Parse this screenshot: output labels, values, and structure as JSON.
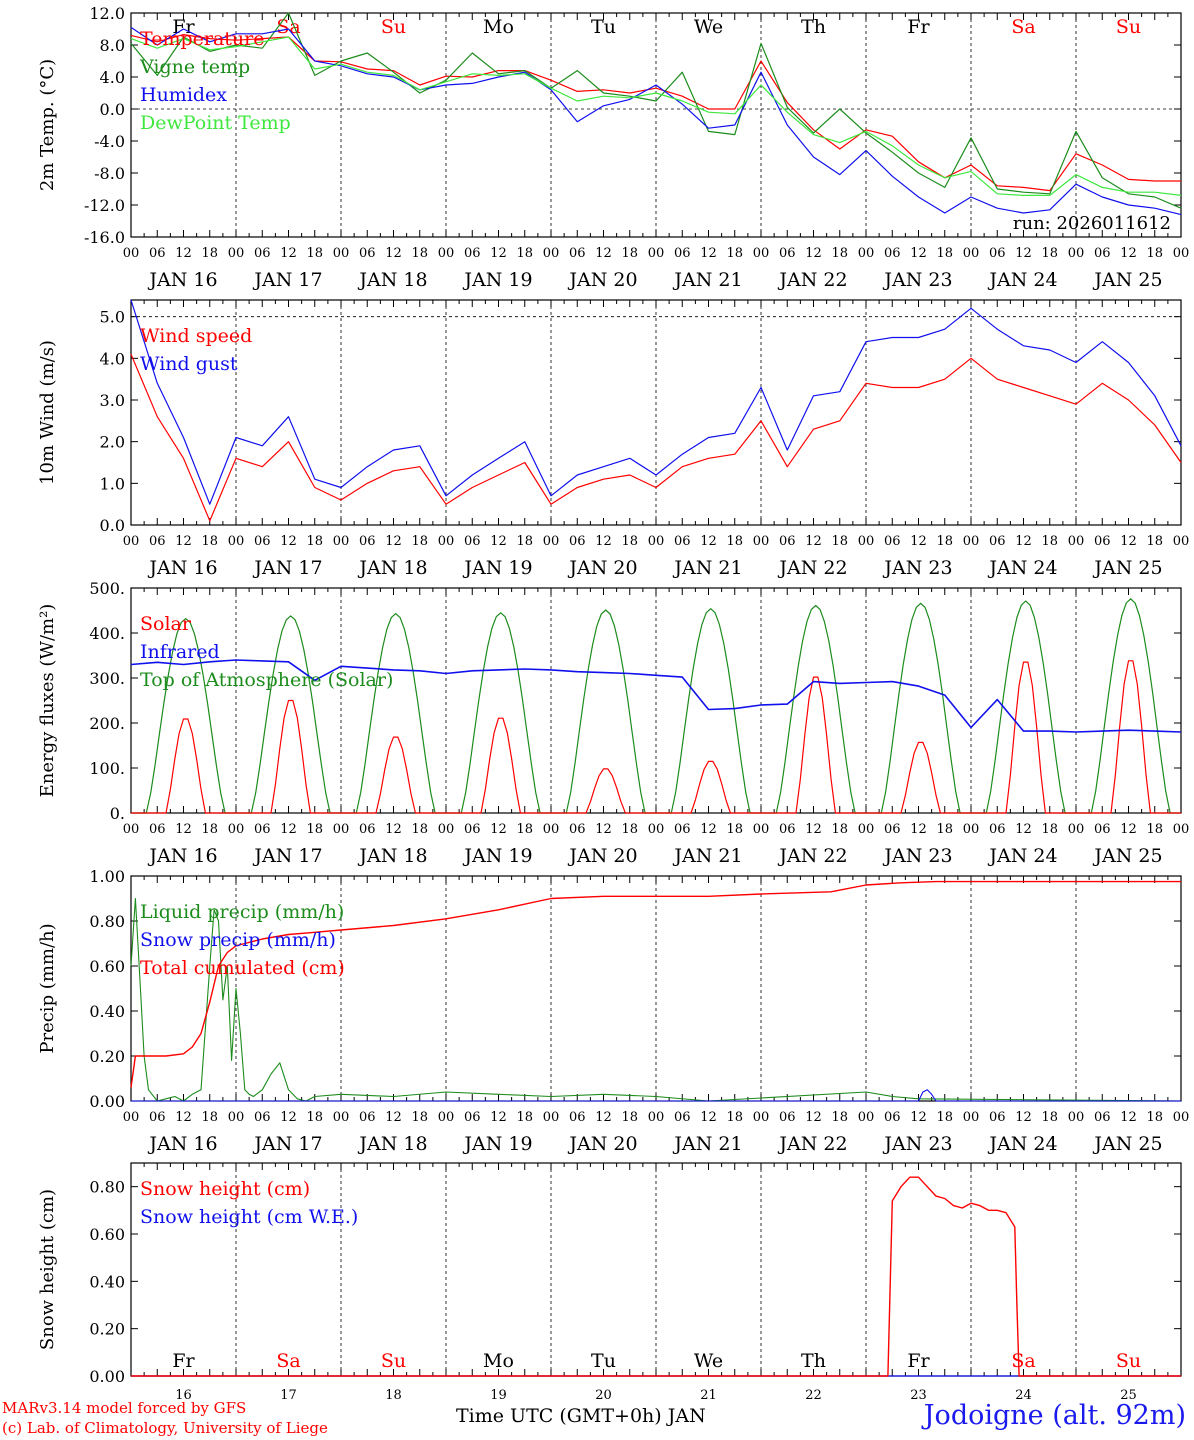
{
  "colors": {
    "red": "#ff0000",
    "green": "#1c8c1c",
    "blue": "#1010ee",
    "light_green": "#3ee83e",
    "axis": "#000000",
    "weekend": "#ff0000"
  },
  "x_axis": {
    "hour_labels": [
      "00",
      "06",
      "12",
      "18"
    ],
    "final_hour_label": "00",
    "date_labels": [
      "JAN 16",
      "JAN 17",
      "JAN 18",
      "JAN 19",
      "JAN 20",
      "JAN 21",
      "JAN 22",
      "JAN 23",
      "JAN 24",
      "JAN 25"
    ],
    "weekdays": [
      {
        "label": "Fr",
        "weekend": false
      },
      {
        "label": "Sa",
        "weekend": true
      },
      {
        "label": "Su",
        "weekend": true
      },
      {
        "label": "Mo",
        "weekend": false
      },
      {
        "label": "Tu",
        "weekend": false
      },
      {
        "label": "We",
        "weekend": false
      },
      {
        "label": "Th",
        "weekend": false
      },
      {
        "label": "Fr",
        "weekend": false
      },
      {
        "label": "Sa",
        "weekend": true
      },
      {
        "label": "Su",
        "weekend": true
      }
    ],
    "day_numbers": [
      "16",
      "17",
      "18",
      "19",
      "20",
      "21",
      "22",
      "23",
      "24",
      "25"
    ],
    "xlabel": "Time UTC (GMT+0h) JAN"
  },
  "footer": {
    "credit_line1": "MARv3.14 model forced by GFS",
    "credit_line2": "(c) Lab. of Climatology, University of Liege",
    "location": "Jodoigne (alt. 92m)"
  },
  "chart_data": [
    {
      "type": "line",
      "title": "2m temperature",
      "ylabel": "2m Temp. (°C)",
      "ylim": [
        -16,
        12
      ],
      "yticks": [
        "12.0",
        "8.0",
        "4.0",
        "0.0",
        "-4.0",
        "-8.0",
        "-12.0",
        "-16.0"
      ],
      "ytick_values": [
        12,
        8,
        4,
        0,
        -4,
        -8,
        -12,
        -16
      ],
      "ref_line": 0,
      "annotation": "run: 2026011612",
      "x_hours": [
        0,
        6,
        12,
        18,
        24,
        30,
        36,
        42,
        48,
        54,
        60,
        66,
        72,
        78,
        84,
        90,
        96,
        102,
        108,
        114,
        120,
        126,
        132,
        138,
        144,
        150,
        156,
        162,
        168,
        174,
        180,
        186,
        192,
        198,
        204,
        210,
        216,
        222,
        228,
        234,
        240
      ],
      "series": [
        {
          "name": "Temperature",
          "color": "red",
          "values": [
            9.2,
            8.4,
            9.3,
            8.8,
            8.6,
            8.8,
            9.0,
            6.0,
            5.9,
            5.0,
            4.8,
            3.0,
            4.1,
            4.0,
            4.8,
            4.8,
            3.6,
            2.2,
            2.4,
            2.0,
            2.6,
            1.6,
            0.0,
            0.0,
            6.0,
            0.8,
            -2.6,
            -5.0,
            -2.6,
            -3.4,
            -6.6,
            -8.6,
            -7.0,
            -9.6,
            -9.8,
            -10.2,
            -5.6,
            -7.0,
            -8.8,
            -9.0,
            -9.0
          ]
        },
        {
          "name": "Vigne temp",
          "color": "green",
          "values": [
            8.2,
            4.2,
            9.0,
            7.2,
            8.0,
            7.6,
            12.0,
            4.2,
            6.0,
            7.0,
            4.6,
            2.0,
            3.6,
            7.0,
            4.4,
            4.8,
            2.6,
            4.8,
            2.0,
            1.6,
            1.0,
            4.6,
            -2.8,
            -3.2,
            8.2,
            0.2,
            -3.0,
            0.0,
            -3.0,
            -5.4,
            -8.0,
            -9.8,
            -3.6,
            -10.0,
            -10.4,
            -10.6,
            -2.8,
            -8.6,
            -10.6,
            -11.0,
            -12.4
          ]
        },
        {
          "name": "Humidex",
          "color": "blue",
          "values": [
            10.2,
            8.0,
            10.0,
            8.4,
            9.4,
            9.4,
            10.0,
            6.0,
            5.4,
            4.4,
            4.0,
            2.4,
            3.0,
            3.2,
            4.0,
            4.6,
            2.4,
            -1.6,
            0.4,
            1.2,
            3.0,
            0.6,
            -2.4,
            -2.0,
            4.6,
            -2.0,
            -6.0,
            -8.2,
            -5.2,
            -8.4,
            -11.0,
            -13.0,
            -11.0,
            -12.4,
            -13.0,
            -12.6,
            -9.4,
            -11.0,
            -12.0,
            -12.4,
            -13.2
          ]
        },
        {
          "name": "DewPoint Temp",
          "color": "light_green",
          "values": [
            8.8,
            7.6,
            8.8,
            7.4,
            7.8,
            8.4,
            9.0,
            5.0,
            5.6,
            4.6,
            4.2,
            2.4,
            3.4,
            4.4,
            4.2,
            4.4,
            2.6,
            1.0,
            1.6,
            1.4,
            2.0,
            1.0,
            -0.4,
            -0.6,
            3.0,
            -0.4,
            -3.2,
            -4.2,
            -2.8,
            -4.6,
            -7.0,
            -8.6,
            -7.8,
            -10.6,
            -10.8,
            -10.8,
            -8.2,
            -9.8,
            -10.4,
            -10.4,
            -10.8
          ]
        }
      ]
    },
    {
      "type": "line",
      "title": "10m wind",
      "ylabel": "10m Wind (m/s)",
      "ylim": [
        0,
        5.4
      ],
      "yticks": [
        "5.0",
        "4.0",
        "3.0",
        "2.0",
        "1.0",
        "0.0"
      ],
      "ytick_values": [
        5,
        4,
        3,
        2,
        1,
        0
      ],
      "ref_line": 5,
      "x_hours": [
        0,
        6,
        12,
        18,
        24,
        30,
        36,
        42,
        48,
        54,
        60,
        66,
        72,
        78,
        84,
        90,
        96,
        102,
        108,
        114,
        120,
        126,
        132,
        138,
        144,
        150,
        156,
        162,
        168,
        174,
        180,
        186,
        192,
        198,
        204,
        210,
        216,
        222,
        228,
        234,
        240
      ],
      "series": [
        {
          "name": "Wind speed",
          "color": "red",
          "values": [
            4.1,
            2.6,
            1.6,
            0.1,
            1.6,
            1.4,
            2.0,
            0.9,
            0.6,
            1.0,
            1.3,
            1.4,
            0.5,
            0.9,
            1.2,
            1.5,
            0.5,
            0.9,
            1.1,
            1.2,
            0.9,
            1.4,
            1.6,
            1.7,
            2.5,
            1.4,
            2.3,
            2.5,
            3.4,
            3.3,
            3.3,
            3.5,
            4.0,
            3.5,
            3.3,
            3.1,
            2.9,
            3.4,
            3.0,
            2.4,
            1.5
          ]
        },
        {
          "name": "Wind gust",
          "color": "blue",
          "values": [
            5.4,
            3.4,
            2.1,
            0.5,
            2.1,
            1.9,
            2.6,
            1.1,
            0.9,
            1.4,
            1.8,
            1.9,
            0.7,
            1.2,
            1.6,
            2.0,
            0.7,
            1.2,
            1.4,
            1.6,
            1.2,
            1.7,
            2.1,
            2.2,
            3.3,
            1.8,
            3.1,
            3.2,
            4.4,
            4.5,
            4.5,
            4.7,
            5.2,
            4.7,
            4.3,
            4.2,
            3.9,
            4.4,
            3.9,
            3.1,
            1.9
          ]
        }
      ]
    },
    {
      "type": "line",
      "title": "Energy fluxes",
      "ylabel": "Energy fluxes (W/m²)",
      "ylim": [
        0,
        500
      ],
      "yticks": [
        "500.",
        "400.",
        "300.",
        "200.",
        "100.",
        "0."
      ],
      "ytick_values": [
        500,
        400,
        300,
        200,
        100,
        0
      ],
      "solar_peaks": [
        213,
        255,
        172,
        215,
        100,
        117,
        308,
        160,
        342,
        345
      ],
      "toa_peaks": [
        432,
        438,
        443,
        445,
        451,
        454,
        461,
        466,
        471,
        476
      ],
      "infrared": {
        "x_hours": [
          0,
          6,
          12,
          18,
          24,
          30,
          36,
          42,
          48,
          54,
          60,
          66,
          72,
          78,
          84,
          90,
          96,
          102,
          108,
          114,
          120,
          126,
          132,
          138,
          144,
          150,
          156,
          162,
          168,
          174,
          180,
          186,
          192,
          198,
          204,
          210,
          216,
          222,
          228,
          234,
          240
        ],
        "values": [
          330,
          335,
          330,
          336,
          340,
          338,
          336,
          295,
          326,
          322,
          318,
          316,
          310,
          316,
          318,
          320,
          318,
          314,
          312,
          310,
          306,
          302,
          230,
          232,
          240,
          242,
          292,
          288,
          290,
          292,
          282,
          262,
          190,
          252,
          182,
          182,
          180,
          182,
          184,
          182,
          180
        ]
      },
      "series": [
        {
          "name": "Solar",
          "color": "red"
        },
        {
          "name": "Infrared",
          "color": "blue"
        },
        {
          "name": "Top of Atmosphere (Solar)",
          "color": "green"
        }
      ]
    },
    {
      "type": "line",
      "title": "Precipitation",
      "ylabel": "Precip (mm/h)",
      "ylim": [
        0,
        1.0
      ],
      "yticks": [
        "1.00",
        "0.80",
        "0.60",
        "0.40",
        "0.20",
        "0.00"
      ],
      "ytick_values": [
        1.0,
        0.8,
        0.6,
        0.4,
        0.2,
        0.0
      ],
      "liquid": {
        "x_hours": [
          0,
          1,
          2,
          3,
          4,
          6,
          8,
          10,
          12,
          14,
          16,
          18,
          19,
          20,
          21,
          22,
          23,
          24,
          25,
          26,
          27,
          28,
          30,
          32,
          34,
          36,
          38,
          40,
          42,
          48,
          60,
          72,
          84,
          96,
          108,
          120,
          132,
          168,
          174,
          180,
          240
        ],
        "values": [
          0.6,
          0.9,
          0.55,
          0.2,
          0.05,
          0.0,
          0.01,
          0.02,
          0.0,
          0.03,
          0.05,
          0.6,
          0.85,
          0.8,
          0.45,
          0.6,
          0.18,
          0.5,
          0.3,
          0.05,
          0.03,
          0.02,
          0.05,
          0.12,
          0.17,
          0.05,
          0.01,
          0.0,
          0.02,
          0.03,
          0.02,
          0.04,
          0.03,
          0.02,
          0.03,
          0.02,
          0.0,
          0.04,
          0.02,
          0.01,
          0.0
        ]
      },
      "snow": {
        "x_hours": [
          0,
          180,
          181,
          182,
          183,
          184,
          240
        ],
        "values": [
          0,
          0,
          0.04,
          0.05,
          0.03,
          0,
          0
        ]
      },
      "cumulated": {
        "x_hours": [
          0,
          1,
          2,
          4,
          8,
          12,
          14,
          16,
          18,
          20,
          22,
          24,
          26,
          30,
          36,
          42,
          48,
          60,
          72,
          84,
          96,
          108,
          120,
          132,
          144,
          160,
          168,
          176,
          184,
          192,
          200,
          216,
          240
        ],
        "values": [
          0.06,
          0.2,
          0.2,
          0.2,
          0.2,
          0.21,
          0.24,
          0.3,
          0.44,
          0.6,
          0.66,
          0.69,
          0.7,
          0.72,
          0.74,
          0.75,
          0.76,
          0.78,
          0.81,
          0.85,
          0.9,
          0.91,
          0.91,
          0.91,
          0.92,
          0.93,
          0.96,
          0.97,
          0.975,
          0.975,
          0.975,
          0.975,
          0.975
        ]
      },
      "series": [
        {
          "name": "Liquid precip (mm/h)",
          "color": "green"
        },
        {
          "name": "Snow precip (mm/h)",
          "color": "blue"
        },
        {
          "name": "Total cumulated (cm)",
          "color": "red"
        }
      ]
    },
    {
      "type": "line",
      "title": "Snow height",
      "ylabel": "Snow height (cm)",
      "ylim": [
        0,
        0.9
      ],
      "yticks": [
        "0.80",
        "0.60",
        "0.40",
        "0.20",
        "0.00"
      ],
      "ytick_values": [
        0.8,
        0.6,
        0.4,
        0.2,
        0.0
      ],
      "snow_height": {
        "x_hours": [
          0,
          173,
          174,
          176,
          178,
          180,
          182,
          184,
          186,
          188,
          190,
          192,
          194,
          196,
          198,
          200,
          202,
          202.5,
          203,
          240
        ],
        "values": [
          0,
          0,
          0.74,
          0.8,
          0.84,
          0.84,
          0.8,
          0.76,
          0.75,
          0.72,
          0.71,
          0.73,
          0.72,
          0.7,
          0.7,
          0.69,
          0.63,
          0.3,
          0,
          0
        ]
      },
      "snow_we": {
        "x_hours": [
          0,
          240
        ],
        "values": [
          0,
          0
        ]
      },
      "series": [
        {
          "name": "Snow height (cm)",
          "color": "red"
        },
        {
          "name": "Snow height (cm W.E.)",
          "color": "blue"
        }
      ]
    }
  ]
}
